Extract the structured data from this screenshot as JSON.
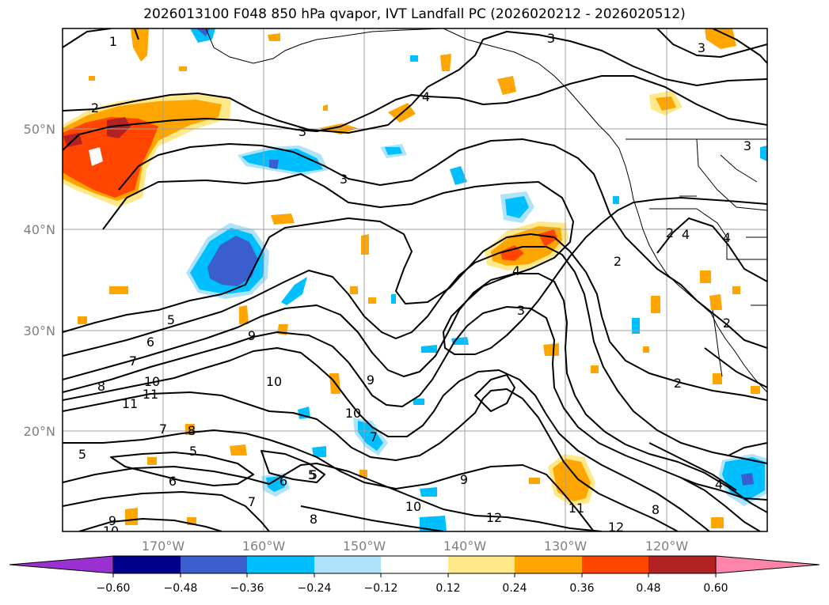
{
  "title": "2026013100 F048 850 hPa qvapor, IVT Landfall PC (2026020212 - 2026020512)",
  "lat_labels": [
    "50°N",
    "40°N",
    "30°N",
    "20°N"
  ],
  "lon_labels": [
    "170°W",
    "160°W",
    "150°W",
    "140°W",
    "130°W",
    "120°W"
  ],
  "colorbar": {
    "colors": [
      "#9b30d0",
      "#00008b",
      "#3a5fcd",
      "#00bfff",
      "#aee3fa",
      "#ffffff",
      "#ffe88a",
      "#ffa500",
      "#ff4500",
      "#b22222",
      "#ff85a8"
    ],
    "tick_labels": [
      "−0.60",
      "−0.48",
      "−0.36",
      "−0.24",
      "−0.12",
      "0.12",
      "0.24",
      "0.36",
      "0.48",
      "0.60"
    ]
  },
  "contour_labels": [
    "1",
    "2",
    "3",
    "3",
    "3",
    "3",
    "3",
    "4",
    "4",
    "4",
    "4",
    "4",
    "2",
    "2",
    "2",
    "2",
    "3",
    "5",
    "6",
    "7",
    "8",
    "9",
    "10",
    "11",
    "11",
    "10",
    "10",
    "9",
    "7",
    "8",
    "5",
    "5",
    "6",
    "6",
    "5",
    "7",
    "7",
    "9",
    "10",
    "12",
    "11",
    "12",
    "8",
    "8",
    "9",
    "10",
    "5"
  ]
}
